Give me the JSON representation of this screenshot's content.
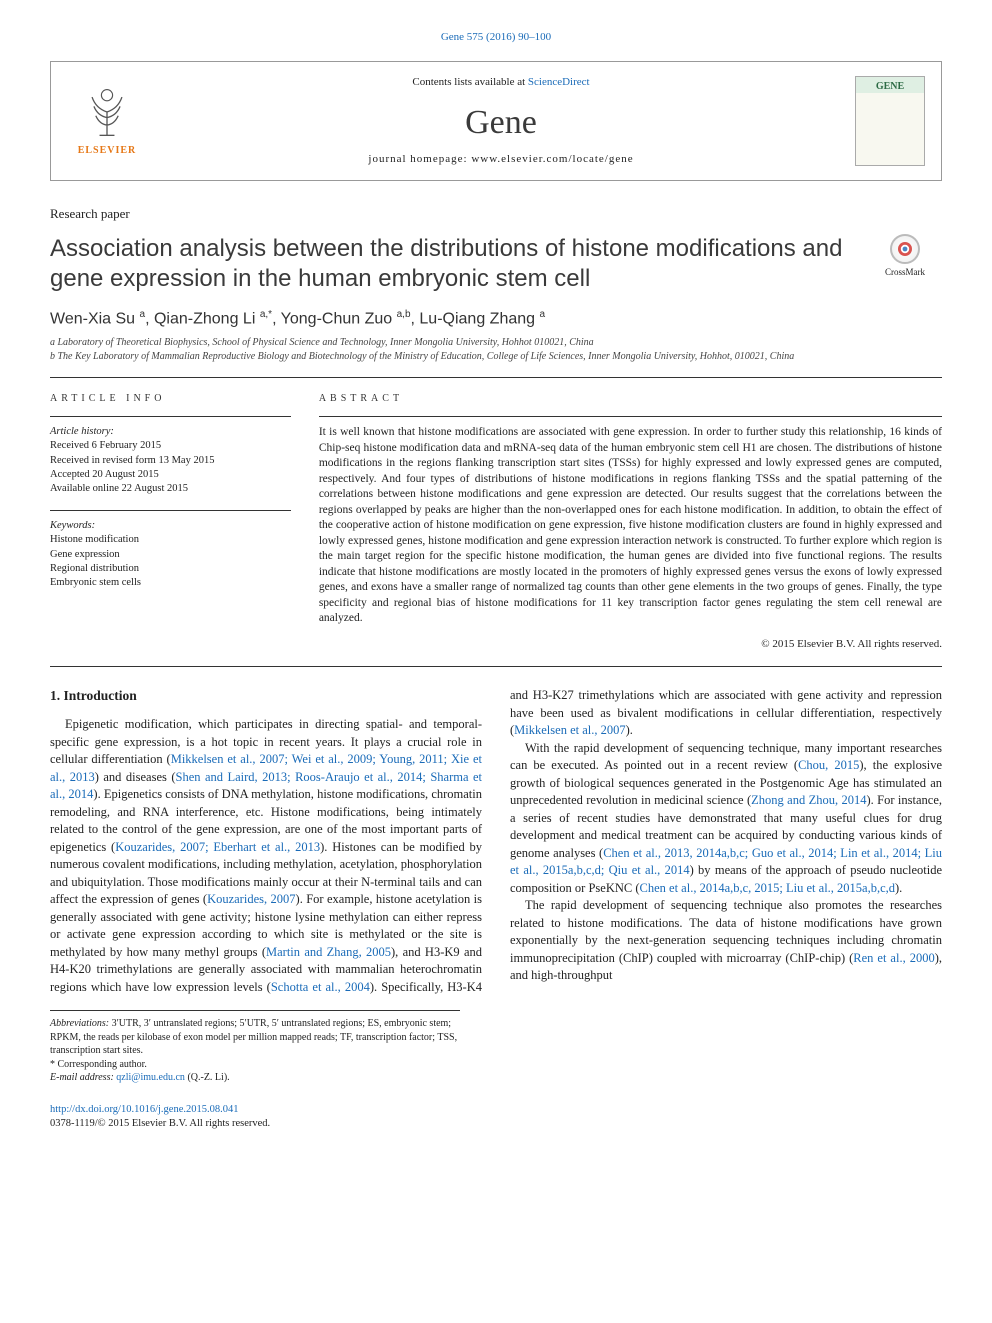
{
  "top_citation": "Gene 575 (2016) 90–100",
  "header": {
    "contents_prefix": "Contents lists available at ",
    "contents_link": "ScienceDirect",
    "journal": "Gene",
    "homepage_prefix": "journal homepage: ",
    "homepage": "www.elsevier.com/locate/gene",
    "publisher": "ELSEVIER",
    "cover_label": "GENE"
  },
  "paper_type": "Research paper",
  "title": "Association analysis between the distributions of histone modifications and gene expression in the human embryonic stem cell",
  "crossmark": "CrossMark",
  "authors_html": "Wen-Xia Su <sup>a</sup>, Qian-Zhong Li <sup>a,*</sup>, Yong-Chun Zuo <sup>a,b</sup>, Lu-Qiang Zhang <sup>a</sup>",
  "affiliations": {
    "a": "a  Laboratory of Theoretical Biophysics, School of Physical Science and Technology, Inner Mongolia University, Hohhot 010021, China",
    "b": "b  The Key Laboratory of Mammalian Reproductive Biology and Biotechnology of the Ministry of Education, College of Life Sciences, Inner Mongolia University, Hohhot, 010021, China"
  },
  "article_info_heading": "article info",
  "abstract_heading": "abstract",
  "history": {
    "label": "Article history:",
    "received": "Received 6 February 2015",
    "revised": "Received in revised form 13 May 2015",
    "accepted": "Accepted 20 August 2015",
    "online": "Available online 22 August 2015"
  },
  "keywords_label": "Keywords:",
  "keywords": [
    "Histone modification",
    "Gene expression",
    "Regional distribution",
    "Embryonic stem cells"
  ],
  "abstract": "It is well known that histone modifications are associated with gene expression. In order to further study this relationship, 16 kinds of Chip-seq histone modification data and mRNA-seq data of the human embryonic stem cell H1 are chosen. The distributions of histone modifications in the regions flanking transcription start sites (TSSs) for highly expressed and lowly expressed genes are computed, respectively. And four types of distributions of histone modifications in regions flanking TSSs and the spatial patterning of the correlations between histone modifications and gene expression are detected. Our results suggest that the correlations between the regions overlapped by peaks are higher than the non-overlapped ones for each histone modification. In addition, to obtain the effect of the cooperative action of histone modification on gene expression, five histone modification clusters are found in highly expressed and lowly expressed genes, histone modification and gene expression interaction network is constructed. To further explore which region is the main target region for the specific histone modification, the human genes are divided into five functional regions. The results indicate that histone modifications are mostly located in the promoters of highly expressed genes versus the exons of lowly expressed genes, and exons have a smaller range of normalized tag counts than other gene elements in the two groups of genes. Finally, the type specificity and regional bias of histone modifications for 11 key transcription factor genes regulating the stem cell renewal are analyzed.",
  "copyright": "© 2015 Elsevier B.V. All rights reserved.",
  "intro_heading": "1. Introduction",
  "intro_p1": "Epigenetic modification, which participates in directing spatial- and temporal-specific gene expression, is a hot topic in recent years. It plays a crucial role in cellular differentiation (",
  "intro_p1_cite1": "Mikkelsen et al., 2007; Wei et al., 2009; Young, 2011; Xie et al., 2013",
  "intro_p1_mid": ") and diseases (",
  "intro_p1_cite2": "Shen and Laird, 2013; Roos-Araujo et al., 2014; Sharma et al., 2014",
  "intro_p1_tail": "). Epigenetics consists of DNA methylation, histone modifications, chromatin remodeling, and RNA interference, etc. Histone modifications, being intimately related to the control of the gene expression, are one of the most important parts of epigenetics (",
  "intro_p1_cite3": "Kouzarides, 2007; Eberhart et al., 2013",
  "intro_p1_tail2": "). Histones can be modified by numerous covalent modifications, including methylation, acetylation, phosphorylation and ubiquitylation. Those modifications mainly occur at their N-terminal tails and can affect the expression of genes (",
  "intro_p1_cite4": "Kouzarides, 2007",
  "intro_p1_tail3": "). For example, histone acetylation is generally associated with gene activity; histone lysine methylation can either repress or activate gene expression according to which site is methylated or the site is methylated by how many methyl groups (",
  "intro_p2_cite1": "Martin and Zhang, 2005",
  "intro_p2_a": "), and H3-K9 and H4-K20 trimethylations are generally associated with mammalian heterochromatin regions which have low expression levels (",
  "intro_p2_cite2": "Schotta et al., 2004",
  "intro_p2_b": "). Specifically, H3-K4 and H3-K27 trimethylations which are associated with gene activity and repression have been used as bivalent modifications in cellular differentiation, respectively (",
  "intro_p2_cite3": "Mikkelsen et al., 2007",
  "intro_p2_c": ").",
  "intro_p3a": "With the rapid development of sequencing technique, many important researches can be executed. As pointed out in a recent review (",
  "intro_p3_cite1": "Chou, 2015",
  "intro_p3b": "), the explosive growth of biological sequences generated in the Postgenomic Age has stimulated an unprecedented revolution in medicinal science (",
  "intro_p3_cite2": "Zhong and Zhou, 2014",
  "intro_p3c": "). For instance, a series of recent studies have demonstrated that many useful clues for drug development and medical treatment can be acquired by conducting various kinds of genome analyses (",
  "intro_p3_cite3": "Chen et al., 2013, 2014a,b,c; Guo et al., 2014; Lin et al., 2014; Liu et al., 2015a,b,c,d; Qiu et al., 2014",
  "intro_p3d": ") by means of the approach of pseudo nucleotide composition or PseKNC (",
  "intro_p3_cite4": "Chen et al., 2014a,b,c, 2015; Liu et al., 2015a,b,c,d",
  "intro_p3e": ").",
  "intro_p4a": "The rapid development of sequencing technique also promotes the researches related to histone modifications. The data of histone modifications have grown exponentially by the next-generation sequencing techniques including chromatin immunoprecipitation (ChIP) coupled with microarray (ChIP-chip) (",
  "intro_p4_cite1": "Ren et al., 2000",
  "intro_p4b": "), and high-throughput",
  "footnotes": {
    "abbrev_label": "Abbreviations:",
    "abbrev": " 3′UTR, 3′ untranslated regions; 5′UTR, 5′ untranslated regions; ES, embryonic stem; RPKM, the reads per kilobase of exon model per million mapped reads; TF, transcription factor; TSS, transcription start sites.",
    "corr": "*  Corresponding author.",
    "email_label": "E-mail address: ",
    "email": "qzli@imu.edu.cn",
    "email_suffix": " (Q.-Z. Li)."
  },
  "footer": {
    "doi": "http://dx.doi.org/10.1016/j.gene.2015.08.041",
    "issn": "0378-1119/© 2015 Elsevier B.V. All rights reserved."
  },
  "colors": {
    "link": "#1a6bb8",
    "text": "#222222",
    "rule": "#333333",
    "elsevier_orange": "#e67817"
  }
}
